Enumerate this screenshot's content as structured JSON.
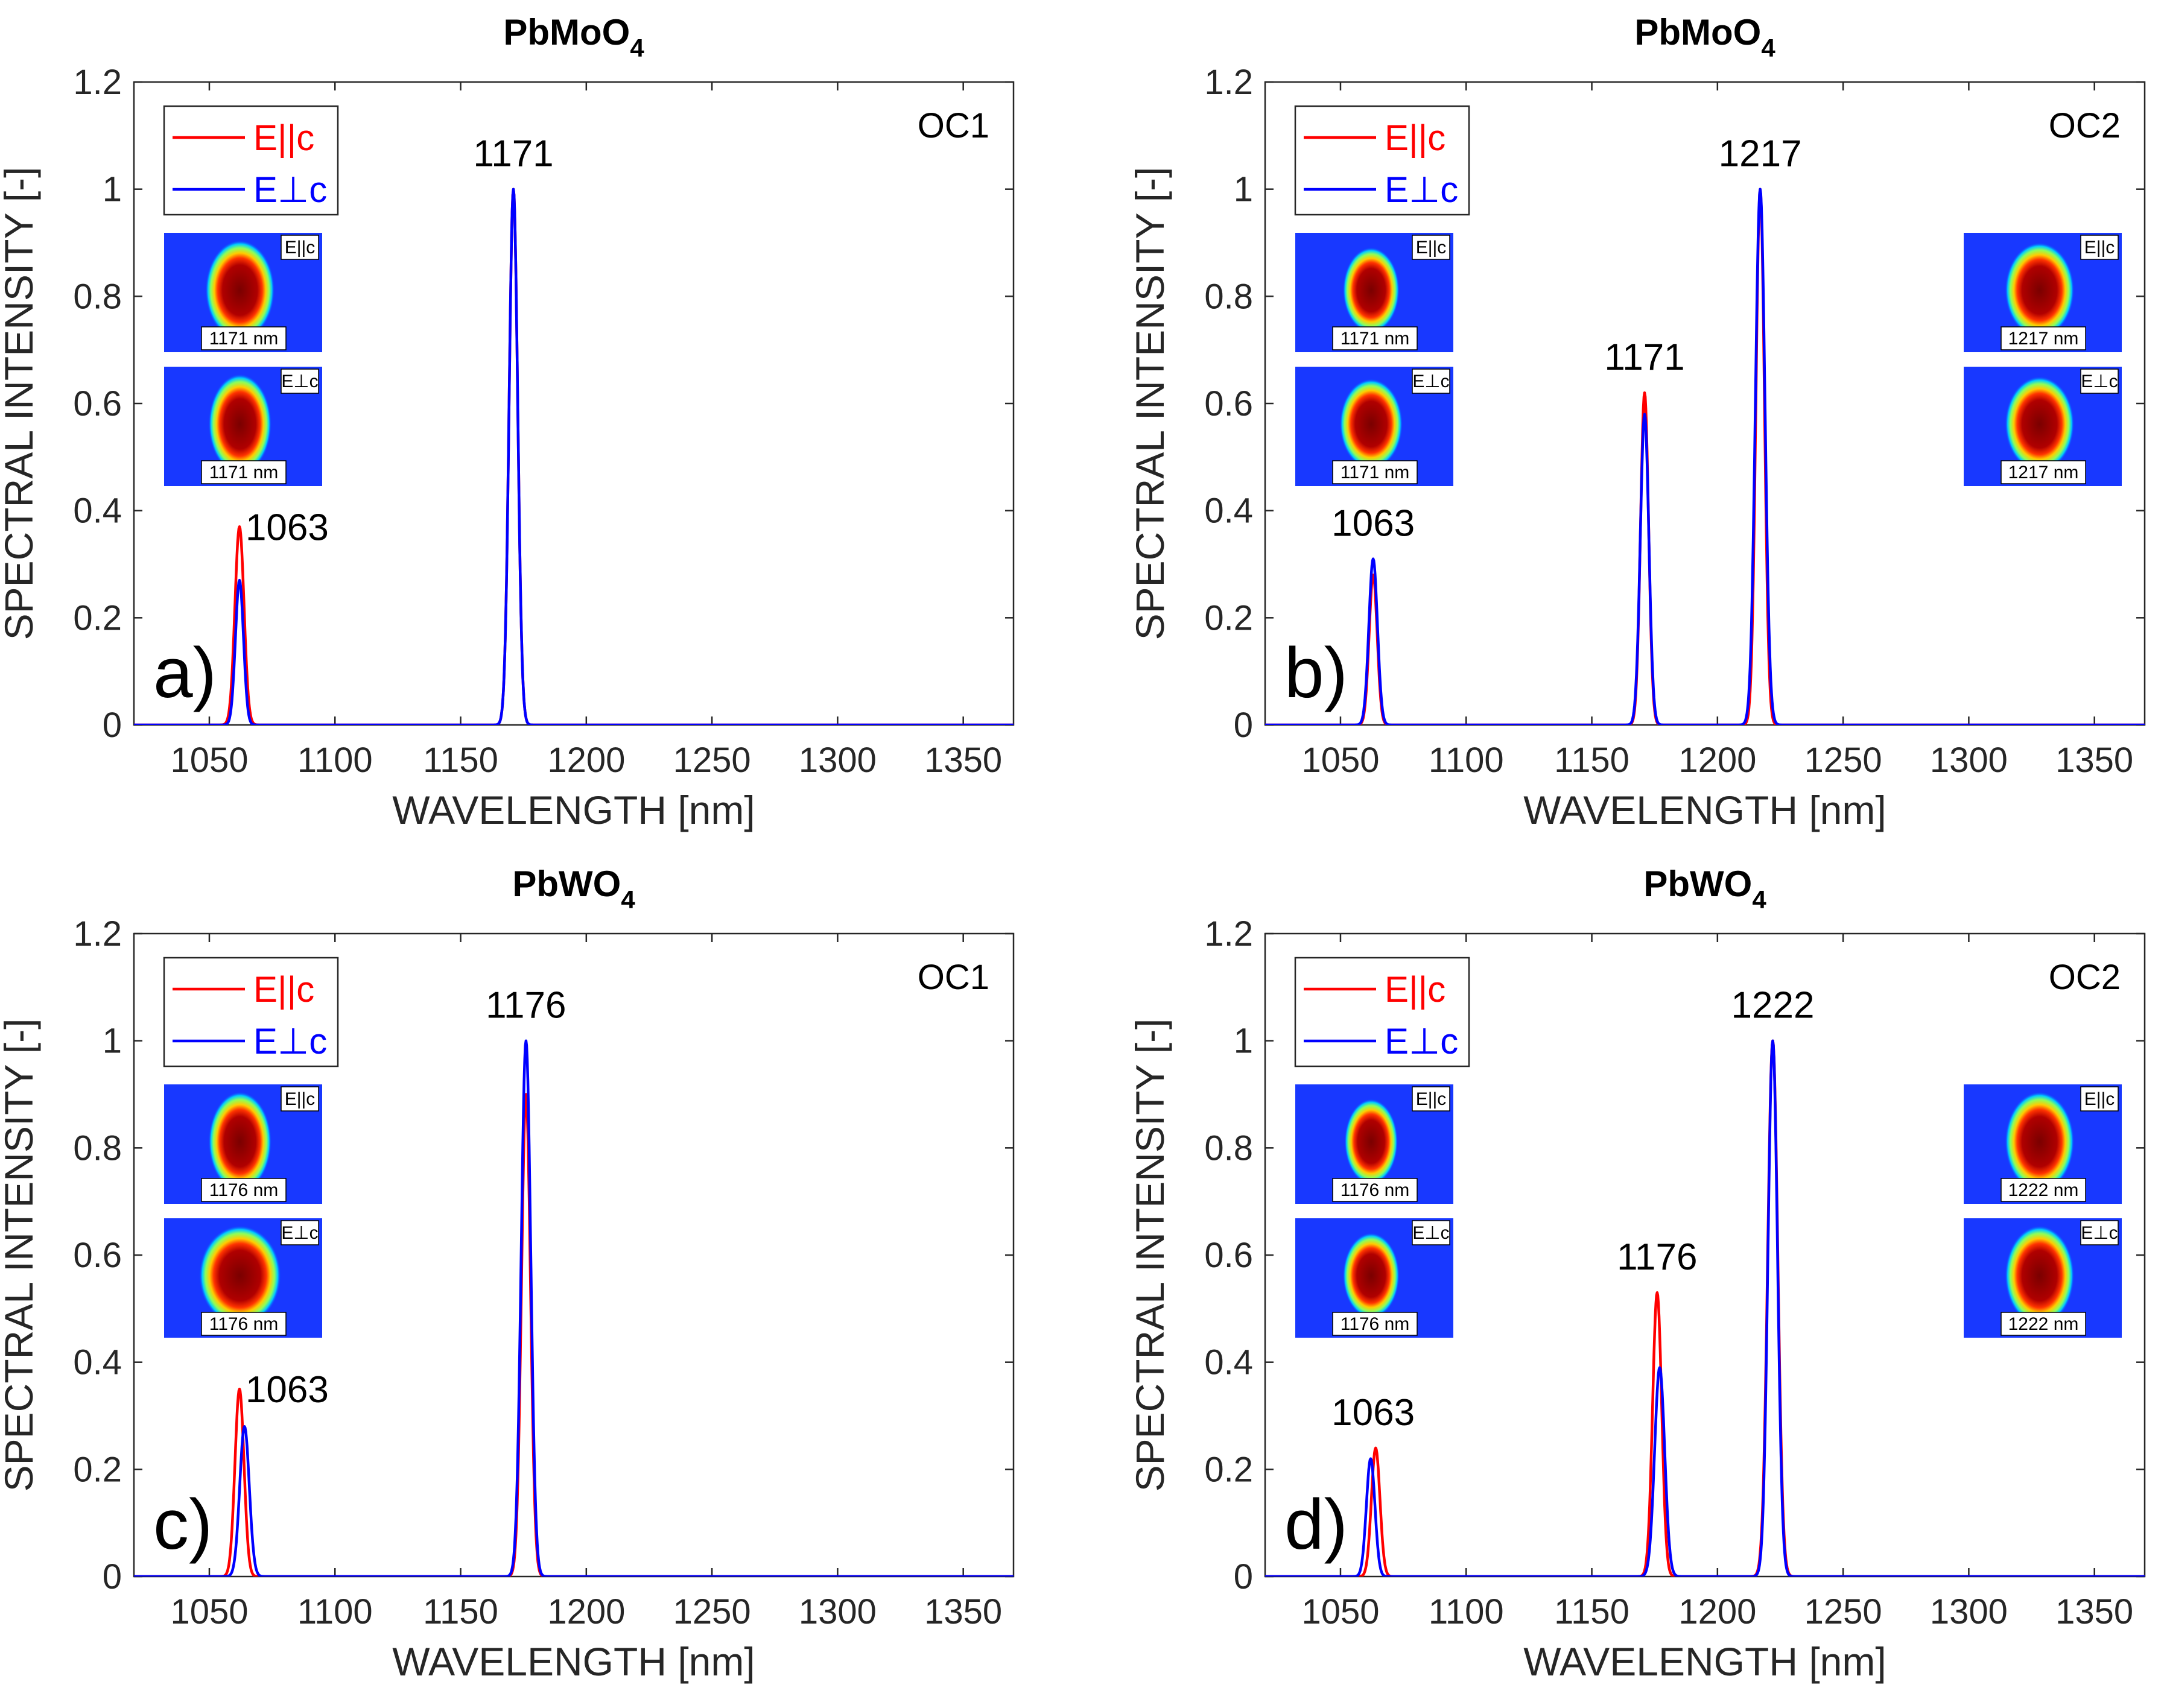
{
  "colors": {
    "parallel": "#ff0000",
    "perpendicular": "#0000ff",
    "axis": "#262626"
  },
  "chart_data": [
    {
      "type": "line",
      "panel": "a)",
      "title": "PbMoO",
      "title_subscript": "4",
      "xlabel": "WAVELENGTH [nm]",
      "ylabel": "SPECTRAL INTENSITY [-]",
      "xlim": [
        1020,
        1370
      ],
      "ylim": [
        0,
        1.2
      ],
      "xticks": [
        "1050",
        "1100",
        "1150",
        "1200",
        "1250",
        "1300",
        "1350"
      ],
      "yticks": [
        "0",
        "0.2",
        "0.4",
        "0.6",
        "0.8",
        "1",
        "1.2"
      ],
      "grid": false,
      "legend_position": "top-left",
      "annotation": "OC1",
      "series": [
        {
          "name": "E||c",
          "color": "#ff0000",
          "peaks": [
            {
              "center": 1062,
              "height": 0.37,
              "width": 1.8
            },
            {
              "center": 1171,
              "height": 1.0,
              "width": 1.7
            }
          ]
        },
        {
          "name": "E⊥c",
          "color": "#0000ff",
          "peaks": [
            {
              "center": 1062,
              "height": 0.27,
              "width": 1.6
            },
            {
              "center": 1171,
              "height": 1.0,
              "width": 1.7
            }
          ]
        }
      ],
      "peak_labels": [
        {
          "text": "1063",
          "x": 1062,
          "y": 0.37
        },
        {
          "text": "1171",
          "x": 1171,
          "y": 1.0
        }
      ],
      "insets": [
        {
          "pol": "E||c",
          "wavelength": "1171 nm",
          "side": "left",
          "row": 0,
          "spot_w": 0.22,
          "spot_h": 0.42
        },
        {
          "pol": "E⊥c",
          "wavelength": "1171 nm",
          "side": "left",
          "row": 1,
          "spot_w": 0.2,
          "spot_h": 0.42
        }
      ]
    },
    {
      "type": "line",
      "panel": "b)",
      "title": "PbMoO",
      "title_subscript": "4",
      "xlabel": "WAVELENGTH [nm]",
      "ylabel": "SPECTRAL INTENSITY [-]",
      "xlim": [
        1020,
        1370
      ],
      "ylim": [
        0,
        1.2
      ],
      "xticks": [
        "1050",
        "1100",
        "1150",
        "1200",
        "1250",
        "1300",
        "1350"
      ],
      "yticks": [
        "0",
        "0.2",
        "0.4",
        "0.6",
        "0.8",
        "1",
        "1.2"
      ],
      "grid": false,
      "legend_position": "top-left",
      "annotation": "OC2",
      "series": [
        {
          "name": "E||c",
          "color": "#ff0000",
          "peaks": [
            {
              "center": 1063,
              "height": 0.28,
              "width": 1.6
            },
            {
              "center": 1171,
              "height": 0.62,
              "width": 1.6
            },
            {
              "center": 1217,
              "height": 1.0,
              "width": 1.7
            }
          ]
        },
        {
          "name": "E⊥c",
          "color": "#0000ff",
          "peaks": [
            {
              "center": 1063,
              "height": 0.31,
              "width": 1.7
            },
            {
              "center": 1171,
              "height": 0.58,
              "width": 1.7
            },
            {
              "center": 1217,
              "height": 1.0,
              "width": 1.9
            }
          ]
        }
      ],
      "peak_labels": [
        {
          "text": "1063",
          "x": 1063,
          "y": 0.31
        },
        {
          "text": "1171",
          "x": 1171,
          "y": 0.62
        },
        {
          "text": "1217",
          "x": 1217,
          "y": 1.0
        }
      ],
      "insets": [
        {
          "pol": "E||c",
          "wavelength": "1171 nm",
          "side": "left",
          "row": 0,
          "spot_w": 0.18,
          "spot_h": 0.36
        },
        {
          "pol": "E⊥c",
          "wavelength": "1171 nm",
          "side": "left",
          "row": 1,
          "spot_w": 0.2,
          "spot_h": 0.38
        },
        {
          "pol": "E||c",
          "wavelength": "1217 nm",
          "side": "right",
          "row": 0,
          "spot_w": 0.22,
          "spot_h": 0.4
        },
        {
          "pol": "E⊥c",
          "wavelength": "1217 nm",
          "side": "right",
          "row": 1,
          "spot_w": 0.22,
          "spot_h": 0.4
        }
      ]
    },
    {
      "type": "line",
      "panel": "c)",
      "title": "PbWO",
      "title_subscript": "4",
      "xlabel": "WAVELENGTH [nm]",
      "ylabel": "SPECTRAL INTENSITY [-]",
      "xlim": [
        1020,
        1370
      ],
      "ylim": [
        0,
        1.2
      ],
      "xticks": [
        "1050",
        "1100",
        "1150",
        "1200",
        "1250",
        "1300",
        "1350"
      ],
      "yticks": [
        "0",
        "0.2",
        "0.4",
        "0.6",
        "0.8",
        "1",
        "1.2"
      ],
      "grid": false,
      "legend_position": "top-left",
      "annotation": "OC1",
      "series": [
        {
          "name": "E||c",
          "color": "#ff0000",
          "peaks": [
            {
              "center": 1062,
              "height": 0.35,
              "width": 1.8
            },
            {
              "center": 1176,
              "height": 0.9,
              "width": 1.8
            }
          ]
        },
        {
          "name": "E⊥c",
          "color": "#0000ff",
          "peaks": [
            {
              "center": 1064,
              "height": 0.28,
              "width": 1.9
            },
            {
              "center": 1176,
              "height": 1.0,
              "width": 1.9
            }
          ]
        }
      ],
      "peak_labels": [
        {
          "text": "1063",
          "x": 1062,
          "y": 0.35
        },
        {
          "text": "1176",
          "x": 1176,
          "y": 1.0
        }
      ],
      "insets": [
        {
          "pol": "E||c",
          "wavelength": "1176 nm",
          "side": "left",
          "row": 0,
          "spot_w": 0.2,
          "spot_h": 0.42
        },
        {
          "pol": "E⊥c",
          "wavelength": "1176 nm",
          "side": "left",
          "row": 1,
          "spot_w": 0.26,
          "spot_h": 0.42
        }
      ]
    },
    {
      "type": "line",
      "panel": "d)",
      "title": "PbWO",
      "title_subscript": "4",
      "xlabel": "WAVELENGTH [nm]",
      "ylabel": "SPECTRAL INTENSITY [-]",
      "xlim": [
        1020,
        1370
      ],
      "ylim": [
        0,
        1.2
      ],
      "xticks": [
        "1050",
        "1100",
        "1150",
        "1200",
        "1250",
        "1300",
        "1350"
      ],
      "yticks": [
        "0",
        "0.2",
        "0.4",
        "0.6",
        "0.8",
        "1",
        "1.2"
      ],
      "grid": false,
      "legend_position": "top-left",
      "annotation": "OC2",
      "series": [
        {
          "name": "E||c",
          "color": "#ff0000",
          "peaks": [
            {
              "center": 1064,
              "height": 0.24,
              "width": 1.7
            },
            {
              "center": 1176,
              "height": 0.53,
              "width": 1.8
            },
            {
              "center": 1222,
              "height": 1.0,
              "width": 2.0
            }
          ]
        },
        {
          "name": "E⊥c",
          "color": "#0000ff",
          "peaks": [
            {
              "center": 1062,
              "height": 0.22,
              "width": 1.7
            },
            {
              "center": 1177,
              "height": 0.39,
              "width": 2.0
            },
            {
              "center": 1222,
              "height": 1.0,
              "width": 1.9
            }
          ]
        }
      ],
      "peak_labels": [
        {
          "text": "1063",
          "x": 1063,
          "y": 0.24
        },
        {
          "text": "1176",
          "x": 1176,
          "y": 0.53
        },
        {
          "text": "1222",
          "x": 1222,
          "y": 1.0
        }
      ],
      "insets": [
        {
          "pol": "E||c",
          "wavelength": "1176 nm",
          "side": "left",
          "row": 0,
          "spot_w": 0.17,
          "spot_h": 0.36
        },
        {
          "pol": "E⊥c",
          "wavelength": "1176 nm",
          "side": "left",
          "row": 1,
          "spot_w": 0.18,
          "spot_h": 0.36
        },
        {
          "pol": "E||c",
          "wavelength": "1222 nm",
          "side": "right",
          "row": 0,
          "spot_w": 0.22,
          "spot_h": 0.42
        },
        {
          "pol": "E⊥c",
          "wavelength": "1222 nm",
          "side": "right",
          "row": 1,
          "spot_w": 0.22,
          "spot_h": 0.42
        }
      ]
    }
  ]
}
